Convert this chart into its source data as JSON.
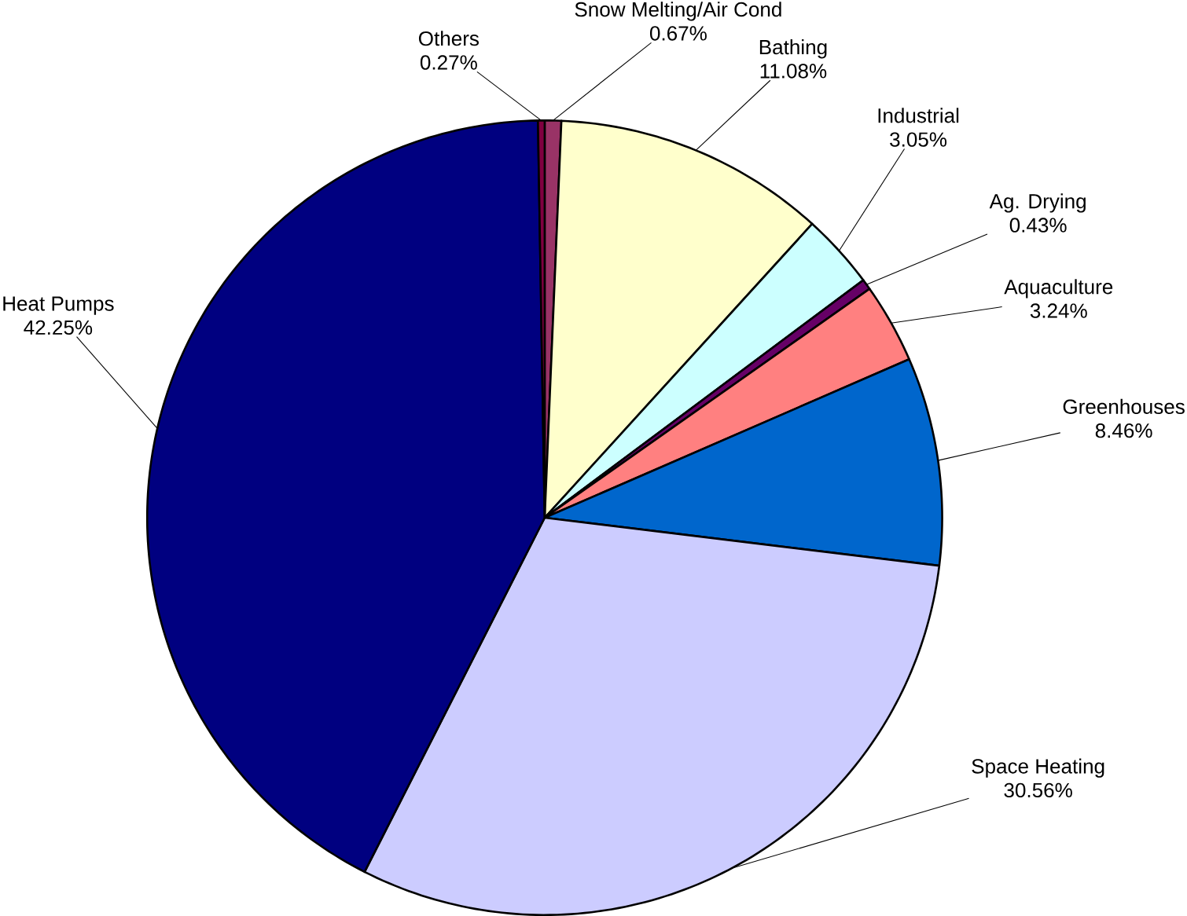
{
  "chart_data": {
    "type": "pie",
    "categories": [
      "Snow Melting/Air Cond",
      "Bathing",
      "Industrial",
      "Ag. Drying",
      "Aquaculture",
      "Greenhouses",
      "Space Heating",
      "Heat Pumps",
      "Others"
    ],
    "values": [
      0.67,
      11.08,
      3.05,
      0.43,
      3.24,
      8.46,
      30.56,
      42.25,
      0.27
    ],
    "value_labels": [
      "0.67%",
      "11.08%",
      "3.05%",
      "0.43%",
      "3.24%",
      "8.46%",
      "30.56%",
      "42.25%",
      "0.27%"
    ],
    "colors": [
      "#993366",
      "#ffffcc",
      "#ccffff",
      "#660066",
      "#ff8080",
      "#0066cc",
      "#ccccff",
      "#000080",
      "#800040"
    ]
  }
}
